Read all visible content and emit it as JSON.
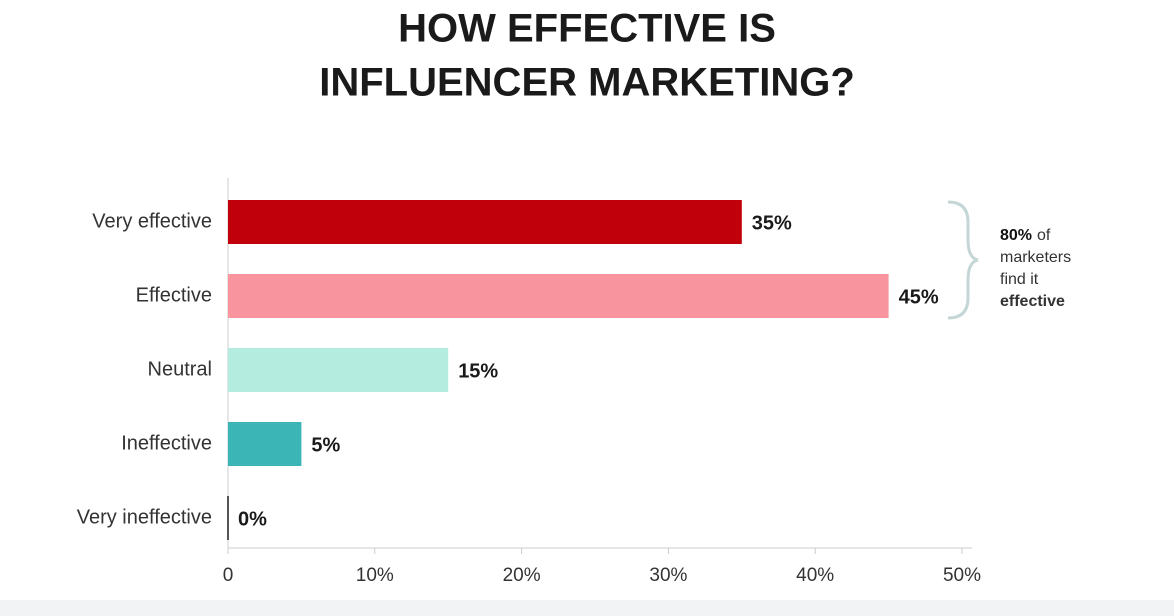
{
  "chart_data": {
    "type": "hbar",
    "title": [
      "HOW EFFECTIVE IS",
      "INFLUENCER MARKETING?"
    ],
    "categories": [
      "Very effective",
      "Effective",
      "Neutral",
      "Ineffective",
      "Very ineffective"
    ],
    "values": [
      35,
      45,
      15,
      5,
      0
    ],
    "value_labels": [
      "35%",
      "45%",
      "15%",
      "5%",
      "0%"
    ],
    "colors": [
      "#c0000b",
      "#f7949e",
      "#b5ece0",
      "#3cb5b6",
      "#555555"
    ],
    "xlim": [
      0,
      50
    ],
    "xticks": [
      0,
      {
        "value": 10,
        "label": "10%"
      },
      {
        "value": 20,
        "label": "20%"
      },
      {
        "value": 30,
        "label": "30%"
      },
      {
        "value": 40,
        "label": "40%"
      },
      {
        "value": 50,
        "label": "50%"
      }
    ],
    "annotation": [
      "80%",
      "of",
      "marketers",
      "find it",
      "effective"
    ]
  }
}
